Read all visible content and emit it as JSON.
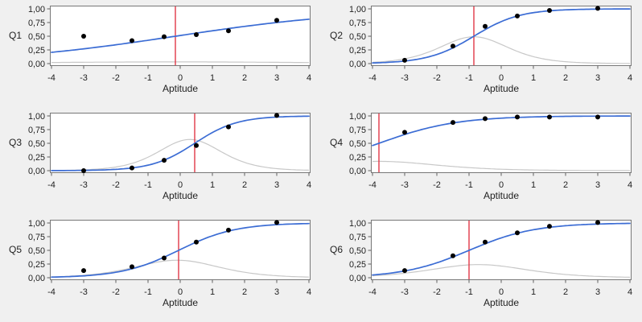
{
  "style": {
    "page_bg": "#f0f0f0",
    "plot_bg": "#ffffff",
    "plot_border": "#777777",
    "tick_color": "#5f5f5f",
    "text_color": "#1f1f1f",
    "curve_color": "#3b6cd4",
    "info_color": "#c8c8c8",
    "threshold_color": "#e13746",
    "point_color": "#000000"
  },
  "chart_data": [
    {
      "type": "line+scatter",
      "label": "Q1",
      "xlabel": "Aptitude",
      "xlim": [
        -4,
        4
      ],
      "ylim": [
        0,
        1
      ],
      "x_ticks": [
        -4,
        -3,
        -2,
        -1,
        0,
        1,
        2,
        3,
        4
      ],
      "y_ticks": [
        1,
        0.75,
        0.5,
        0.25,
        0
      ],
      "y_tick_labels": [
        "1,00",
        "0,75",
        "0,50",
        "0,25",
        "0,00"
      ],
      "scatter_x": [
        -3,
        -1.5,
        -0.5,
        0.5,
        1.5,
        3
      ],
      "scatter_y": [
        0.5,
        0.42,
        0.49,
        0.53,
        0.6,
        0.79
      ],
      "fitted_curve": {
        "model": "logistic",
        "slope": 0.35,
        "inflection": -0.15
      },
      "information_curve": {
        "peak": 0.031,
        "center": -0.15
      },
      "threshold_line_x": -0.15,
      "grid": "off",
      "legend": "none"
    },
    {
      "type": "line+scatter",
      "label": "Q2",
      "xlabel": "Aptitude",
      "xlim": [
        -4,
        4
      ],
      "ylim": [
        0,
        1
      ],
      "x_ticks": [
        -4,
        -3,
        -2,
        -1,
        0,
        1,
        2,
        3,
        4
      ],
      "y_ticks": [
        1,
        0.75,
        0.5,
        0.25,
        0
      ],
      "y_tick_labels": [
        "1,00",
        "0,75",
        "0,50",
        "0,25",
        "0,00"
      ],
      "scatter_x": [
        -3,
        -1.5,
        -0.5,
        0.5,
        1.5,
        3
      ],
      "scatter_y": [
        0.06,
        0.32,
        0.68,
        0.87,
        0.97,
        1.01
      ],
      "fitted_curve": {
        "model": "logistic",
        "slope": 1.4,
        "inflection": -0.85
      },
      "information_curve": {
        "peak": 0.49,
        "center": -0.85
      },
      "threshold_line_x": -0.85,
      "grid": "off",
      "legend": "none"
    },
    {
      "type": "line+scatter",
      "label": "Q3",
      "xlabel": "Aptitude",
      "xlim": [
        -4,
        4
      ],
      "ylim": [
        0,
        1
      ],
      "x_ticks": [
        -4,
        -3,
        -2,
        -1,
        0,
        1,
        2,
        3,
        4
      ],
      "y_ticks": [
        1,
        0.75,
        0.5,
        0.25,
        0
      ],
      "y_tick_labels": [
        "1,00",
        "0,75",
        "0,50",
        "0,25",
        "0,00"
      ],
      "scatter_x": [
        -3,
        -1.5,
        -0.5,
        0.5,
        1.5,
        3
      ],
      "scatter_y": [
        0.0,
        0.05,
        0.19,
        0.46,
        0.8,
        1.01
      ],
      "fitted_curve": {
        "model": "logistic",
        "slope": 1.51,
        "inflection": 0.45
      },
      "information_curve": {
        "peak": 0.57,
        "center": 0.3
      },
      "threshold_line_x": 0.45,
      "grid": "off",
      "legend": "none"
    },
    {
      "type": "line+scatter",
      "label": "Q4",
      "xlabel": "Aptitude",
      "xlim": [
        -4,
        4
      ],
      "ylim": [
        0,
        1
      ],
      "x_ticks": [
        -4,
        -3,
        -2,
        -1,
        0,
        1,
        2,
        3,
        4
      ],
      "y_ticks": [
        1,
        0.75,
        0.5,
        0.25,
        0
      ],
      "y_tick_labels": [
        "1,00",
        "0,75",
        "0,50",
        "0,25",
        "0,00"
      ],
      "scatter_x": [
        -3,
        -1.5,
        -0.5,
        0.5,
        1.5,
        3
      ],
      "scatter_y": [
        0.7,
        0.88,
        0.95,
        0.98,
        0.98,
        0.98
      ],
      "fitted_curve": {
        "model": "logistic",
        "slope": 0.83,
        "inflection": -3.8
      },
      "information_curve": {
        "peak": 0.17,
        "center": -3.8
      },
      "threshold_line_x": -3.8,
      "grid": "off",
      "legend": "none"
    },
    {
      "type": "line+scatter",
      "label": "Q5",
      "xlabel": "Aptitude",
      "xlim": [
        -4,
        4
      ],
      "ylim": [
        0,
        1
      ],
      "x_ticks": [
        -4,
        -3,
        -2,
        -1,
        0,
        1,
        2,
        3,
        4
      ],
      "y_ticks": [
        1,
        0.75,
        0.5,
        0.25,
        0
      ],
      "y_tick_labels": [
        "1,00",
        "0,75",
        "0,50",
        "0,25",
        "0,00"
      ],
      "scatter_x": [
        -3,
        -1.5,
        -0.5,
        0.5,
        1.5,
        3
      ],
      "scatter_y": [
        0.13,
        0.2,
        0.36,
        0.65,
        0.87,
        1.01
      ],
      "fitted_curve": {
        "model": "logistic",
        "slope": 1.13,
        "inflection": -0.05
      },
      "information_curve": {
        "peak": 0.32,
        "center": -0.1
      },
      "threshold_line_x": -0.05,
      "grid": "off",
      "legend": "none"
    },
    {
      "type": "line+scatter",
      "label": "Q6",
      "xlabel": "Aptitude",
      "xlim": [
        -4,
        4
      ],
      "ylim": [
        0,
        1
      ],
      "x_ticks": [
        -4,
        -3,
        -2,
        -1,
        0,
        1,
        2,
        3,
        4
      ],
      "y_ticks": [
        1,
        0.75,
        0.5,
        0.25,
        0
      ],
      "y_tick_labels": [
        "1,00",
        "0,75",
        "0,50",
        "0,25",
        "0,00"
      ],
      "scatter_x": [
        -3,
        -1.5,
        -0.5,
        0.5,
        1.5,
        3
      ],
      "scatter_y": [
        0.13,
        0.4,
        0.65,
        0.82,
        0.94,
        1.01
      ],
      "fitted_curve": {
        "model": "logistic",
        "slope": 0.98,
        "inflection": -1.0
      },
      "information_curve": {
        "peak": 0.24,
        "center": -0.7
      },
      "threshold_line_x": -1.0,
      "grid": "off",
      "legend": "none"
    }
  ]
}
